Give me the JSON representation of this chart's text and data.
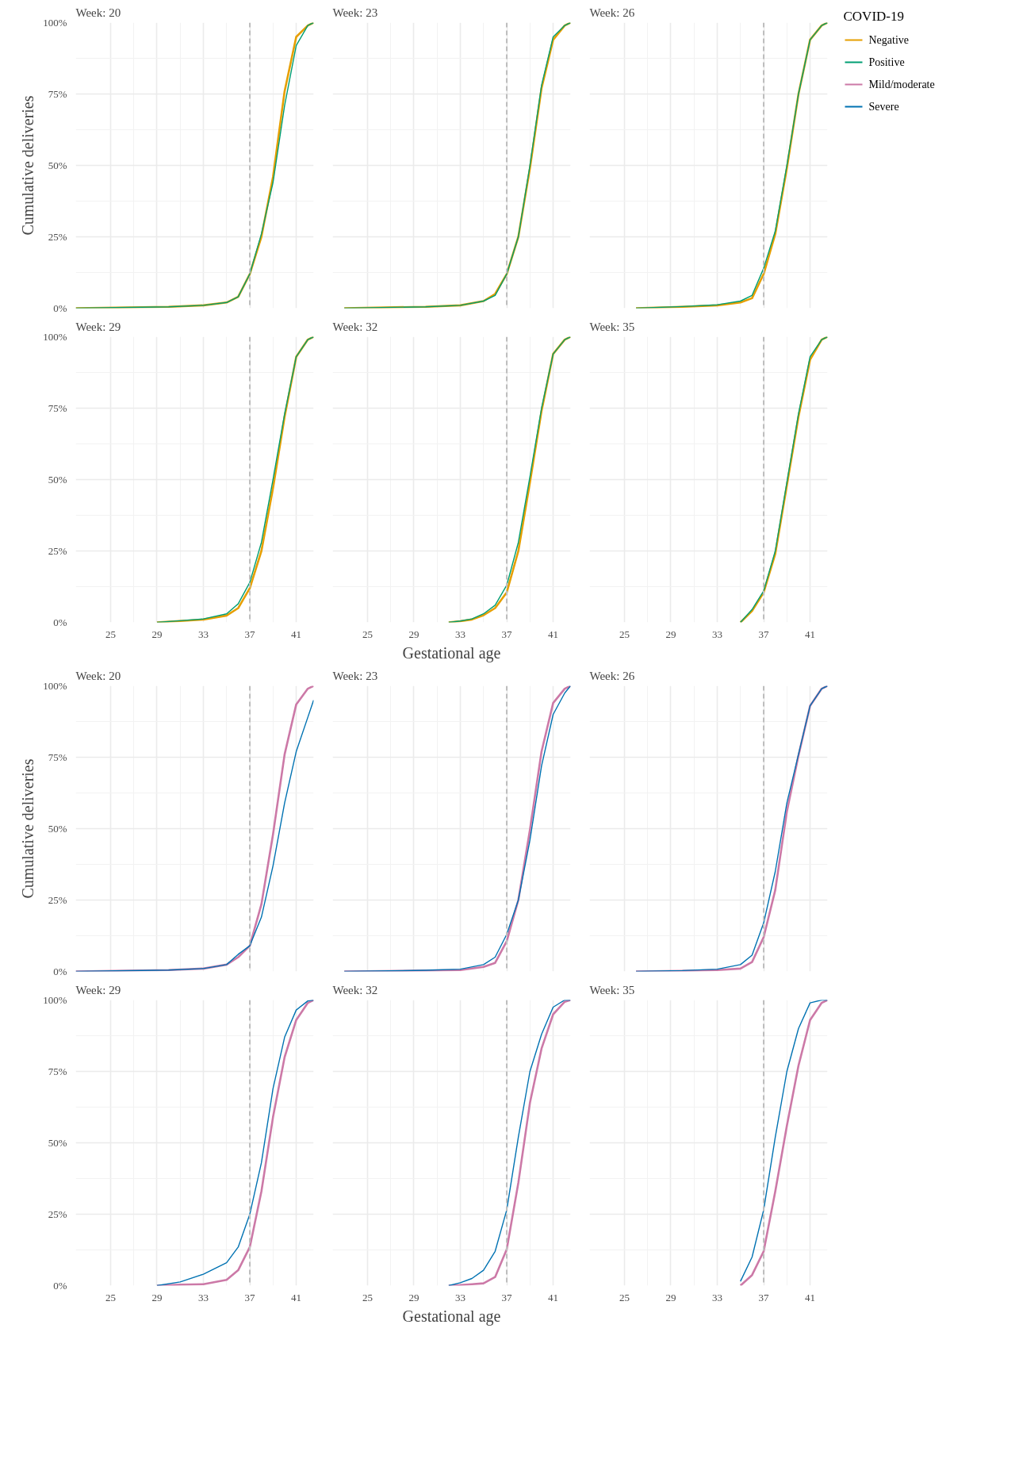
{
  "chart_data": [
    {
      "type": "line",
      "title": "Week: 20",
      "ylabel": "Cumulative deliveries",
      "legend": "right",
      "legend_title": "COVID-19",
      "xlim": [
        22,
        42.5
      ],
      "ylim": [
        0,
        100
      ],
      "xticks": [
        25,
        29,
        33,
        37,
        41
      ],
      "yticks": [
        {
          "value": 0,
          "label": "0%"
        },
        {
          "value": 25,
          "label": "25%"
        },
        {
          "value": 50,
          "label": "50%"
        },
        {
          "value": 75,
          "label": "75%"
        },
        {
          "value": 100,
          "label": "100%"
        }
      ],
      "grid": true,
      "tick_labels": "y",
      "ref_lines": [
        {
          "axis": "x",
          "value": 37,
          "color": "#bebebe",
          "line_style": "dashed"
        }
      ],
      "series": [
        {
          "name": "Negative",
          "color": "#e69f00",
          "x": [
            22,
            30,
            33,
            35,
            36,
            37,
            38,
            39,
            40,
            41,
            42,
            42.5
          ],
          "values": [
            0,
            0.5,
            1,
            2,
            4,
            12,
            25,
            46,
            76,
            95,
            99,
            100
          ]
        },
        {
          "name": "Positive",
          "color": "#009e73",
          "x": [
            22,
            30,
            33,
            35,
            36,
            37,
            38,
            39,
            40,
            41,
            42,
            42.5
          ],
          "values": [
            0,
            0.5,
            1,
            2,
            4,
            12,
            26,
            44,
            71,
            92,
            99,
            100
          ]
        }
      ]
    },
    {
      "type": "line",
      "title": "Week: 23",
      "xlim": [
        22,
        42.5
      ],
      "ylim": [
        0,
        100
      ],
      "xticks": [
        25,
        29,
        33,
        37,
        41
      ],
      "yticks": [
        {
          "value": 0,
          "label": "0%"
        },
        {
          "value": 25,
          "label": "25%"
        },
        {
          "value": 50,
          "label": "50%"
        },
        {
          "value": 75,
          "label": "75%"
        },
        {
          "value": 100,
          "label": "100%"
        }
      ],
      "grid": true,
      "tick_labels": false,
      "ref_lines": [
        {
          "axis": "x",
          "value": 37,
          "color": "#bebebe",
          "line_style": "dashed"
        }
      ],
      "series": [
        {
          "name": "Negative",
          "color": "#e69f00",
          "x": [
            23,
            30,
            33,
            35,
            36,
            37,
            38,
            39,
            40,
            41,
            42,
            42.5
          ],
          "values": [
            0,
            0.5,
            1,
            2.5,
            5,
            12,
            25,
            49,
            77,
            94,
            99,
            100
          ]
        },
        {
          "name": "Positive",
          "color": "#009e73",
          "x": [
            23,
            30,
            33,
            35,
            36,
            37,
            38,
            39,
            40,
            41,
            42,
            42.5
          ],
          "values": [
            0,
            0.5,
            1,
            2.5,
            4.5,
            12,
            25,
            50,
            78,
            95,
            99,
            100
          ]
        }
      ]
    },
    {
      "type": "line",
      "title": "Week: 26",
      "xlim": [
        22,
        42.5
      ],
      "ylim": [
        0,
        100
      ],
      "xticks": [
        25,
        29,
        33,
        37,
        41
      ],
      "yticks": [
        {
          "value": 0,
          "label": "0%"
        },
        {
          "value": 25,
          "label": "25%"
        },
        {
          "value": 50,
          "label": "50%"
        },
        {
          "value": 75,
          "label": "75%"
        },
        {
          "value": 100,
          "label": "100%"
        }
      ],
      "grid": true,
      "tick_labels": false,
      "ref_lines": [
        {
          "axis": "x",
          "value": 37,
          "color": "#bebebe",
          "line_style": "dashed"
        }
      ],
      "series": [
        {
          "name": "Negative",
          "color": "#e69f00",
          "x": [
            26,
            30,
            33,
            35,
            36,
            37,
            38,
            39,
            40,
            41,
            42,
            42.5
          ],
          "values": [
            0,
            0.5,
            1,
            2,
            3.5,
            12,
            26,
            49,
            75,
            94,
            99,
            100
          ]
        },
        {
          "name": "Positive",
          "color": "#009e73",
          "x": [
            26,
            30,
            33,
            35,
            36,
            37,
            38,
            39,
            40,
            41,
            42,
            42.5
          ],
          "values": [
            0,
            0.6,
            1.2,
            2.5,
            4.5,
            14,
            27,
            50,
            75,
            94,
            99,
            100
          ]
        }
      ]
    },
    {
      "type": "line",
      "title": "Week: 29",
      "xlim": [
        22,
        42.5
      ],
      "ylim": [
        0,
        100
      ],
      "xticks": [
        25,
        29,
        33,
        37,
        41
      ],
      "yticks": [
        {
          "value": 0,
          "label": "0%"
        },
        {
          "value": 25,
          "label": "25%"
        },
        {
          "value": 50,
          "label": "50%"
        },
        {
          "value": 75,
          "label": "75%"
        },
        {
          "value": 100,
          "label": "100%"
        }
      ],
      "grid": true,
      "ref_lines": [
        {
          "axis": "x",
          "value": 37,
          "color": "#bebebe",
          "line_style": "dashed"
        }
      ],
      "series": [
        {
          "name": "Negative",
          "color": "#e69f00",
          "x": [
            29,
            31,
            33,
            35,
            36,
            37,
            38,
            39,
            40,
            41,
            42,
            42.5
          ],
          "values": [
            0,
            0.5,
            1,
            2.4,
            5,
            12,
            25,
            47,
            72,
            93,
            99,
            100
          ]
        },
        {
          "name": "Positive",
          "color": "#009e73",
          "x": [
            29,
            31,
            33,
            35,
            36,
            37,
            38,
            39,
            40,
            41,
            42,
            42.5
          ],
          "values": [
            0,
            0.6,
            1.2,
            3,
            6.5,
            14,
            28,
            50,
            73,
            93,
            99,
            100
          ]
        }
      ]
    },
    {
      "type": "line",
      "title": "Week: 32",
      "xlabel": "Gestational age",
      "xlim": [
        22,
        42.5
      ],
      "ylim": [
        0,
        100
      ],
      "xticks": [
        25,
        29,
        33,
        37,
        41
      ],
      "yticks": [
        {
          "value": 0,
          "label": "0%"
        },
        {
          "value": 25,
          "label": "25%"
        },
        {
          "value": 50,
          "label": "50%"
        },
        {
          "value": 75,
          "label": "75%"
        },
        {
          "value": 100,
          "label": "100%"
        }
      ],
      "grid": true,
      "tick_labels": "x",
      "ref_lines": [
        {
          "axis": "x",
          "value": 37,
          "color": "#bebebe",
          "line_style": "dashed"
        }
      ],
      "series": [
        {
          "name": "Negative",
          "color": "#e69f00",
          "x": [
            32,
            33,
            34,
            35,
            36,
            37,
            38,
            39,
            40,
            41,
            42,
            42.5
          ],
          "values": [
            0,
            0.4,
            1,
            2.5,
            5,
            10.5,
            25,
            49,
            74,
            94,
            99,
            100
          ]
        },
        {
          "name": "Positive",
          "color": "#009e73",
          "x": [
            32,
            33,
            34,
            35,
            36,
            37,
            38,
            39,
            40,
            41,
            42,
            42.5
          ],
          "values": [
            0,
            0.5,
            1.2,
            3,
            6,
            13,
            28,
            51,
            75,
            94,
            99,
            100
          ]
        }
      ]
    },
    {
      "type": "line",
      "title": "Week: 35",
      "xlim": [
        22,
        42.5
      ],
      "ylim": [
        0,
        100
      ],
      "xticks": [
        25,
        29,
        33,
        37,
        41
      ],
      "yticks": [
        {
          "value": 0,
          "label": "0%"
        },
        {
          "value": 25,
          "label": "25%"
        },
        {
          "value": 50,
          "label": "50%"
        },
        {
          "value": 75,
          "label": "75%"
        },
        {
          "value": 100,
          "label": "100%"
        }
      ],
      "grid": true,
      "tick_labels": "x",
      "ref_lines": [
        {
          "axis": "x",
          "value": 37,
          "color": "#bebebe",
          "line_style": "dashed"
        }
      ],
      "series": [
        {
          "name": "Negative",
          "color": "#e69f00",
          "x": [
            35,
            36,
            37,
            38,
            39,
            40,
            41,
            42,
            42.5
          ],
          "values": [
            0,
            4,
            10.5,
            24,
            48,
            72,
            92,
            99,
            100
          ]
        },
        {
          "name": "Positive",
          "color": "#009e73",
          "x": [
            35,
            36,
            37,
            38,
            39,
            40,
            41,
            42,
            42.5
          ],
          "values": [
            0,
            4.5,
            11,
            25,
            49,
            73,
            93,
            99,
            100
          ]
        }
      ]
    },
    {
      "type": "line",
      "title": "Week: 20",
      "ylabel": "Cumulative deliveries",
      "legend": "right",
      "xlim": [
        22,
        42.5
      ],
      "ylim": [
        0,
        100
      ],
      "xticks": [
        25,
        29,
        33,
        37,
        41
      ],
      "yticks": [
        {
          "value": 0,
          "label": "0%"
        },
        {
          "value": 25,
          "label": "25%"
        },
        {
          "value": 50,
          "label": "50%"
        },
        {
          "value": 75,
          "label": "75%"
        },
        {
          "value": 100,
          "label": "100%"
        }
      ],
      "grid": true,
      "tick_labels": "y",
      "ref_lines": [
        {
          "axis": "x",
          "value": 37,
          "color": "#bebebe",
          "line_style": "dashed"
        }
      ],
      "series": [
        {
          "name": "Mild/moderate",
          "color": "#cc79a7",
          "x": [
            22,
            30,
            33,
            35,
            36,
            37,
            38,
            39,
            40,
            41,
            42,
            42.5
          ],
          "values": [
            0,
            0.5,
            1,
            2.4,
            5,
            9,
            23.5,
            48,
            76,
            93.5,
            99,
            100
          ]
        },
        {
          "name": "Severe",
          "color": "#0072b2",
          "x": [
            22,
            30,
            33,
            35,
            36,
            37,
            38,
            39,
            40,
            41,
            42,
            42.5
          ],
          "values": [
            0,
            0.5,
            1,
            2.4,
            6,
            9,
            19,
            37,
            59,
            77,
            89,
            95
          ]
        }
      ]
    },
    {
      "type": "line",
      "title": "Week: 23",
      "xlim": [
        22,
        42.5
      ],
      "ylim": [
        0,
        100
      ],
      "xticks": [
        25,
        29,
        33,
        37,
        41
      ],
      "yticks": [
        {
          "value": 0,
          "label": "0%"
        },
        {
          "value": 25,
          "label": "25%"
        },
        {
          "value": 50,
          "label": "50%"
        },
        {
          "value": 75,
          "label": "75%"
        },
        {
          "value": 100,
          "label": "100%"
        }
      ],
      "grid": true,
      "tick_labels": false,
      "ref_lines": [
        {
          "axis": "x",
          "value": 37,
          "color": "#bebebe",
          "line_style": "dashed"
        }
      ],
      "series": [
        {
          "name": "Mild/moderate",
          "color": "#cc79a7",
          "x": [
            23,
            30,
            33,
            35,
            36,
            37,
            38,
            39,
            40,
            41,
            42,
            42.5
          ],
          "values": [
            0,
            0.3,
            0.5,
            1.6,
            3,
            10.6,
            25,
            49.6,
            77,
            94,
            99,
            100
          ]
        },
        {
          "name": "Severe",
          "color": "#0072b2",
          "x": [
            23,
            30,
            33,
            35,
            36,
            37,
            38,
            39,
            40,
            41,
            42,
            42.5
          ],
          "values": [
            0,
            0.4,
            0.8,
            2.4,
            5,
            13,
            25,
            46,
            72,
            90,
            97.5,
            100
          ]
        }
      ]
    },
    {
      "type": "line",
      "title": "Week: 26",
      "xlim": [
        22,
        42.5
      ],
      "ylim": [
        0,
        100
      ],
      "xticks": [
        25,
        29,
        33,
        37,
        41
      ],
      "yticks": [
        {
          "value": 0,
          "label": "0%"
        },
        {
          "value": 25,
          "label": "25%"
        },
        {
          "value": 50,
          "label": "50%"
        },
        {
          "value": 75,
          "label": "75%"
        },
        {
          "value": 100,
          "label": "100%"
        }
      ],
      "grid": true,
      "tick_labels": false,
      "ref_lines": [
        {
          "axis": "x",
          "value": 37,
          "color": "#bebebe",
          "line_style": "dashed"
        }
      ],
      "series": [
        {
          "name": "Mild/moderate",
          "color": "#cc79a7",
          "x": [
            26,
            30,
            33,
            35,
            36,
            37,
            38,
            39,
            40,
            41,
            42,
            42.5
          ],
          "values": [
            0,
            0.2,
            0.5,
            1,
            3.3,
            12,
            28.5,
            56,
            75.6,
            93,
            99,
            100
          ]
        },
        {
          "name": "Severe",
          "color": "#0072b2",
          "x": [
            26,
            30,
            33,
            35,
            36,
            37,
            38,
            39,
            40,
            41,
            42,
            42.5
          ],
          "values": [
            0,
            0.3,
            0.8,
            2.4,
            5.7,
            17,
            35,
            59,
            76,
            93,
            99,
            100
          ]
        }
      ]
    },
    {
      "type": "line",
      "title": "Week: 29",
      "xlim": [
        22,
        42.5
      ],
      "ylim": [
        0,
        100
      ],
      "xticks": [
        25,
        29,
        33,
        37,
        41
      ],
      "yticks": [
        {
          "value": 0,
          "label": "0%"
        },
        {
          "value": 25,
          "label": "25%"
        },
        {
          "value": 50,
          "label": "50%"
        },
        {
          "value": 75,
          "label": "75%"
        },
        {
          "value": 100,
          "label": "100%"
        }
      ],
      "grid": true,
      "ref_lines": [
        {
          "axis": "x",
          "value": 37,
          "color": "#bebebe",
          "line_style": "dashed"
        }
      ],
      "series": [
        {
          "name": "Mild/moderate",
          "color": "#cc79a7",
          "x": [
            29,
            31,
            33,
            35,
            36,
            37,
            38,
            39,
            40,
            41,
            42,
            42.5
          ],
          "values": [
            0,
            0.3,
            0.5,
            2,
            5.4,
            13.5,
            33,
            59,
            80,
            93,
            99,
            100
          ]
        },
        {
          "name": "Severe",
          "color": "#0072b2",
          "x": [
            29,
            31,
            33,
            35,
            36,
            37,
            38,
            39,
            40,
            41,
            42,
            42.5
          ],
          "values": [
            0,
            1.3,
            4,
            8,
            13.5,
            25,
            43,
            69,
            87,
            96.5,
            99.7,
            100
          ]
        }
      ]
    },
    {
      "type": "line",
      "title": "Week: 32",
      "xlabel": "Gestational age",
      "xlim": [
        22,
        42.5
      ],
      "ylim": [
        0,
        100
      ],
      "xticks": [
        25,
        29,
        33,
        37,
        41
      ],
      "yticks": [
        {
          "value": 0,
          "label": "0%"
        },
        {
          "value": 25,
          "label": "25%"
        },
        {
          "value": 50,
          "label": "50%"
        },
        {
          "value": 75,
          "label": "75%"
        },
        {
          "value": 100,
          "label": "100%"
        }
      ],
      "grid": true,
      "tick_labels": "x",
      "ref_lines": [
        {
          "axis": "x",
          "value": 37,
          "color": "#bebebe",
          "line_style": "dashed"
        }
      ],
      "series": [
        {
          "name": "Mild/moderate",
          "color": "#cc79a7",
          "x": [
            32,
            33,
            34,
            35,
            36,
            37,
            38,
            39,
            40,
            41,
            42,
            42.5
          ],
          "values": [
            0,
            0.2,
            0.5,
            0.8,
            3,
            12.7,
            36,
            64,
            83,
            95,
            99.4,
            100
          ]
        },
        {
          "name": "Severe",
          "color": "#0072b2",
          "x": [
            32,
            33,
            34,
            35,
            36,
            37,
            38,
            39,
            40,
            41,
            42,
            42.5
          ],
          "values": [
            0,
            1,
            2.5,
            5.4,
            12,
            26.5,
            52,
            75,
            88,
            97.5,
            100,
            100
          ]
        }
      ]
    },
    {
      "type": "line",
      "title": "Week: 35",
      "xlim": [
        22,
        42.5
      ],
      "ylim": [
        0,
        100
      ],
      "xticks": [
        25,
        29,
        33,
        37,
        41
      ],
      "yticks": [
        {
          "value": 0,
          "label": "0%"
        },
        {
          "value": 25,
          "label": "25%"
        },
        {
          "value": 50,
          "label": "50%"
        },
        {
          "value": 75,
          "label": "75%"
        },
        {
          "value": 100,
          "label": "100%"
        }
      ],
      "grid": true,
      "tick_labels": "x",
      "ref_lines": [
        {
          "axis": "x",
          "value": 37,
          "color": "#bebebe",
          "line_style": "dashed"
        }
      ],
      "series": [
        {
          "name": "Mild/moderate",
          "color": "#cc79a7",
          "x": [
            35,
            36,
            37,
            38,
            39,
            40,
            41,
            42,
            42.5
          ],
          "values": [
            0,
            3.7,
            12,
            33,
            56,
            77,
            93,
            99,
            100
          ]
        },
        {
          "name": "Severe",
          "color": "#0072b2",
          "x": [
            35,
            36,
            37,
            38,
            39,
            40,
            41,
            42,
            42.5
          ],
          "values": [
            1.5,
            10,
            26.5,
            52,
            75,
            90,
            99,
            100,
            100
          ]
        }
      ]
    }
  ]
}
